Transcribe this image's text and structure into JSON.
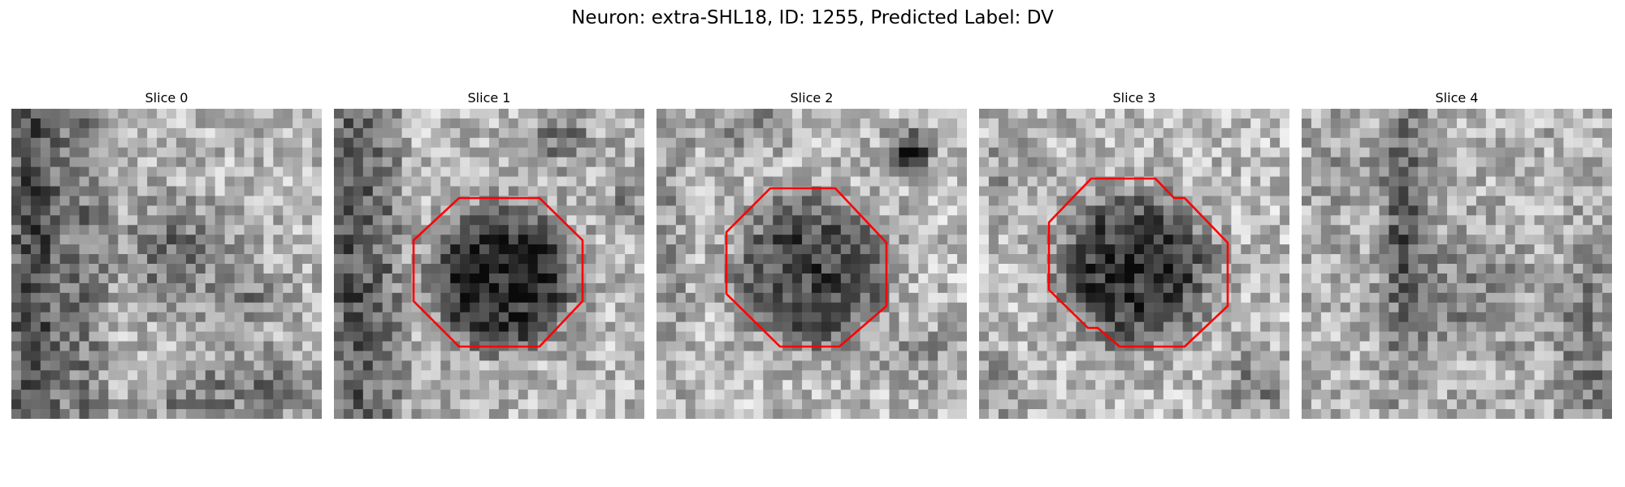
{
  "figure": {
    "title": "Neuron: extra-SHL18, ID: 1255, Predicted Label: DV"
  },
  "colors": {
    "contour": "#ff0000",
    "background": "#ffffff"
  },
  "panels": [
    {
      "title": "Slice 0",
      "has_contour": false
    },
    {
      "title": "Slice 1",
      "has_contour": true
    },
    {
      "title": "Slice 2",
      "has_contour": true
    },
    {
      "title": "Slice 3",
      "has_contour": true
    },
    {
      "title": "Slice 4",
      "has_contour": false
    }
  ]
}
